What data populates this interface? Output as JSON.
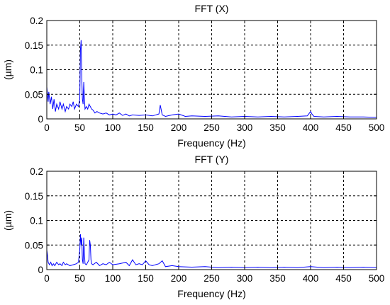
{
  "chart_data": [
    {
      "type": "line",
      "title": "FFT (X)",
      "xlabel": "Frequency (Hz)",
      "ylabel": "(µm)",
      "xlim": [
        0,
        500
      ],
      "ylim": [
        0,
        0.2
      ],
      "xticks": [
        "0",
        "50",
        "100",
        "150",
        "200",
        "250",
        "300",
        "350",
        "400",
        "450",
        "500"
      ],
      "yticks": [
        "0",
        "0.05",
        "0.1",
        "0.15",
        "0.2"
      ],
      "grid": true,
      "series_color": "#0000ff",
      "x": [
        0,
        1,
        2,
        3,
        5,
        7,
        9,
        11,
        13,
        15,
        18,
        20,
        23,
        25,
        28,
        30,
        33,
        35,
        38,
        40,
        42,
        45,
        48,
        50,
        51,
        52,
        53,
        54,
        55,
        56,
        57,
        58,
        60,
        62,
        64,
        66,
        68,
        70,
        73,
        76,
        80,
        85,
        90,
        95,
        100,
        105,
        110,
        115,
        120,
        125,
        130,
        140,
        150,
        160,
        170,
        172,
        175,
        180,
        190,
        200,
        210,
        220,
        240,
        260,
        280,
        300,
        320,
        340,
        360,
        380,
        395,
        400,
        402,
        405,
        420,
        440,
        460,
        480,
        500
      ],
      "values": [
        0.065,
        0.05,
        0.035,
        0.055,
        0.03,
        0.045,
        0.02,
        0.04,
        0.015,
        0.03,
        0.02,
        0.035,
        0.02,
        0.03,
        0.015,
        0.025,
        0.02,
        0.03,
        0.025,
        0.035,
        0.02,
        0.03,
        0.025,
        0.04,
        0.14,
        0.16,
        0.085,
        0.04,
        0.03,
        0.075,
        0.045,
        0.02,
        0.025,
        0.02,
        0.03,
        0.025,
        0.02,
        0.018,
        0.012,
        0.015,
        0.012,
        0.01,
        0.012,
        0.008,
        0.01,
        0.008,
        0.012,
        0.007,
        0.01,
        0.006,
        0.008,
        0.007,
        0.008,
        0.006,
        0.01,
        0.028,
        0.008,
        0.005,
        0.008,
        0.01,
        0.005,
        0.006,
        0.005,
        0.006,
        0.004,
        0.005,
        0.004,
        0.005,
        0.004,
        0.005,
        0.006,
        0.015,
        0.01,
        0.005,
        0.004,
        0.005,
        0.004,
        0.004,
        0.003
      ]
    },
    {
      "type": "line",
      "title": "FFT (Y)",
      "xlabel": "Frequency (Hz)",
      "ylabel": "(µm)",
      "xlim": [
        0,
        500
      ],
      "ylim": [
        0,
        0.2
      ],
      "xticks": [
        "0",
        "50",
        "100",
        "150",
        "200",
        "250",
        "300",
        "350",
        "400",
        "450",
        "500"
      ],
      "yticks": [
        "0",
        "0.05",
        "0.1",
        "0.15",
        "0.2"
      ],
      "grid": true,
      "series_color": "#0000ff",
      "x": [
        0,
        1,
        2,
        4,
        6,
        8,
        10,
        12,
        15,
        18,
        20,
        23,
        25,
        28,
        30,
        35,
        40,
        45,
        48,
        50,
        51,
        52,
        53,
        54,
        55,
        56,
        57,
        58,
        60,
        62,
        64,
        65,
        66,
        67,
        68,
        70,
        75,
        80,
        85,
        90,
        95,
        100,
        110,
        120,
        125,
        130,
        135,
        140,
        145,
        150,
        155,
        160,
        170,
        175,
        180,
        190,
        200,
        220,
        240,
        260,
        280,
        300,
        320,
        340,
        360,
        380,
        400,
        420,
        440,
        460,
        480,
        500
      ],
      "values": [
        0.04,
        0.03,
        0.015,
        0.01,
        0.015,
        0.008,
        0.012,
        0.008,
        0.015,
        0.01,
        0.012,
        0.008,
        0.015,
        0.01,
        0.012,
        0.008,
        0.01,
        0.012,
        0.015,
        0.04,
        0.072,
        0.05,
        0.065,
        0.02,
        0.012,
        0.065,
        0.035,
        0.012,
        0.01,
        0.015,
        0.02,
        0.06,
        0.05,
        0.02,
        0.012,
        0.01,
        0.015,
        0.008,
        0.012,
        0.01,
        0.015,
        0.01,
        0.012,
        0.015,
        0.008,
        0.02,
        0.01,
        0.012,
        0.01,
        0.018,
        0.01,
        0.008,
        0.012,
        0.018,
        0.006,
        0.008,
        0.006,
        0.005,
        0.006,
        0.004,
        0.005,
        0.004,
        0.005,
        0.004,
        0.005,
        0.004,
        0.006,
        0.004,
        0.005,
        0.004,
        0.005,
        0.004
      ]
    }
  ]
}
